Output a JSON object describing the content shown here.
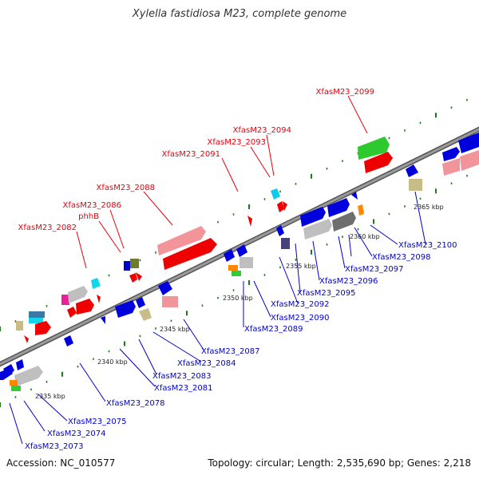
{
  "title": "Xylella fastidiosa M23, complete genome",
  "footer": {
    "accession": "Accession: NC_010577",
    "summary": "Topology: circular; Length: 2,535,690 bp; Genes: 2,218"
  },
  "colors": {
    "backbone": "#8c8c8c",
    "forward_label": "#e8000b",
    "reverse_label": "#0000cc",
    "tick": "#1a7a1a"
  },
  "kbp_labels": [
    "2335 kbp",
    "2340 kbp",
    "2345 kbp",
    "2350 kbp",
    "2355 kbp",
    "2360 kbp",
    "2365 kbp"
  ],
  "forward_labels": [
    "XfasM23_2082",
    "XfasM23_2086",
    "phhB",
    "XfasM23_2088",
    "XfasM23_2091",
    "XfasM23_2093",
    "XfasM23_2094",
    "XfasM23_2099"
  ],
  "reverse_labels": [
    "XfasM23_2073",
    "XfasM23_2074",
    "XfasM23_2075",
    "XfasM23_2078",
    "XfasM23_2081",
    "XfasM23_2083",
    "XfasM23_2084",
    "XfasM23_2087",
    "XfasM23_2089",
    "XfasM23_2090",
    "XfasM23_2092",
    "XfasM23_2095",
    "XfasM23_2096",
    "XfasM23_2097",
    "XfasM23_2098",
    "XfasM23_2100"
  ]
}
